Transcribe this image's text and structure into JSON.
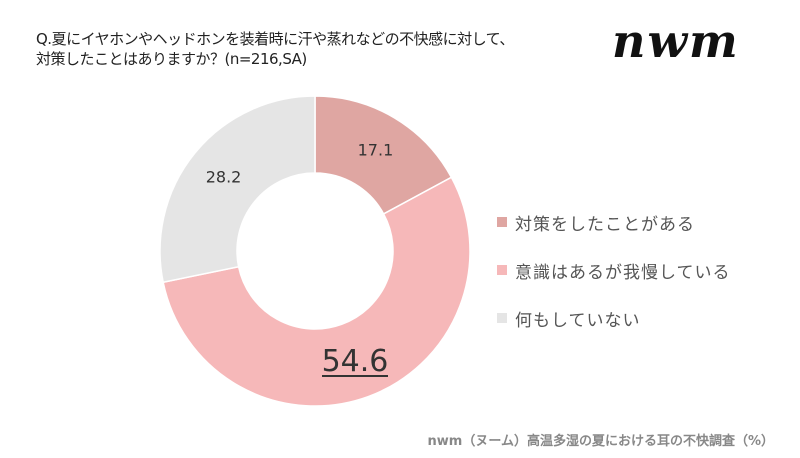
{
  "title_line1": "Q.夏にイヤホンやヘッドホンを装着時に汗や蒸れなどの不快感に対して、",
  "title_line2": "対策したことはありますか？(n=216,SA)",
  "logo": "nwm",
  "source": "nwm（ヌーム）高温多湿の夏における耳の不快調査（%）",
  "chart_data": {
    "type": "pie",
    "donut": true,
    "unit": "%",
    "start": "top",
    "direction": "clockwise",
    "legend_position": "right",
    "categories": [
      "対策をしたことがある",
      "意識はあるが我慢している",
      "何もしていない"
    ],
    "values": [
      17.1,
      54.6,
      28.2
    ],
    "labels": [
      "17.1",
      "54.6",
      "28.2"
    ],
    "colors": [
      "#dfa6a2",
      "#f6b8b9",
      "#e5e5e5"
    ],
    "highlighted": "54.6"
  }
}
